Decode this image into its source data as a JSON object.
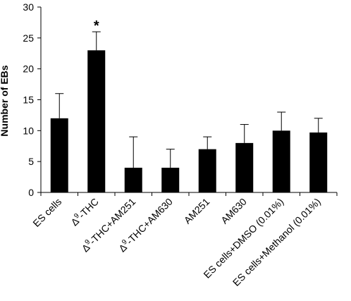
{
  "chart_data": {
    "type": "bar",
    "title": "",
    "xlabel": "",
    "ylabel": "Number of EBs",
    "ylim": [
      0,
      30
    ],
    "yticks": [
      0,
      5,
      10,
      15,
      20,
      25,
      30
    ],
    "grid": false,
    "legend": "none",
    "bar_color": "#000000",
    "categories": [
      {
        "prefix": "",
        "sup": "",
        "rest": "ES cells"
      },
      {
        "prefix": "Δ",
        "sup": "9",
        "rest": "-THC"
      },
      {
        "prefix": "Δ",
        "sup": "9",
        "rest": "-THC+AM251"
      },
      {
        "prefix": "Δ",
        "sup": "9",
        "rest": "-THC+AM630"
      },
      {
        "prefix": "",
        "sup": "",
        "rest": "AM251"
      },
      {
        "prefix": "",
        "sup": "",
        "rest": "AM630"
      },
      {
        "prefix": "",
        "sup": "",
        "rest": "ES cells+DMSO (0.01%)"
      },
      {
        "prefix": "",
        "sup": "",
        "rest": "ES cells+Methanol (0.01%)"
      }
    ],
    "values": [
      12,
      23,
      4,
      4,
      7,
      8,
      10,
      9.7
    ],
    "errors": [
      4,
      3,
      5,
      3,
      2,
      3,
      3,
      2.3
    ],
    "annotations": [
      "",
      "*",
      "",
      "",
      "",
      "",
      "",
      ""
    ]
  }
}
